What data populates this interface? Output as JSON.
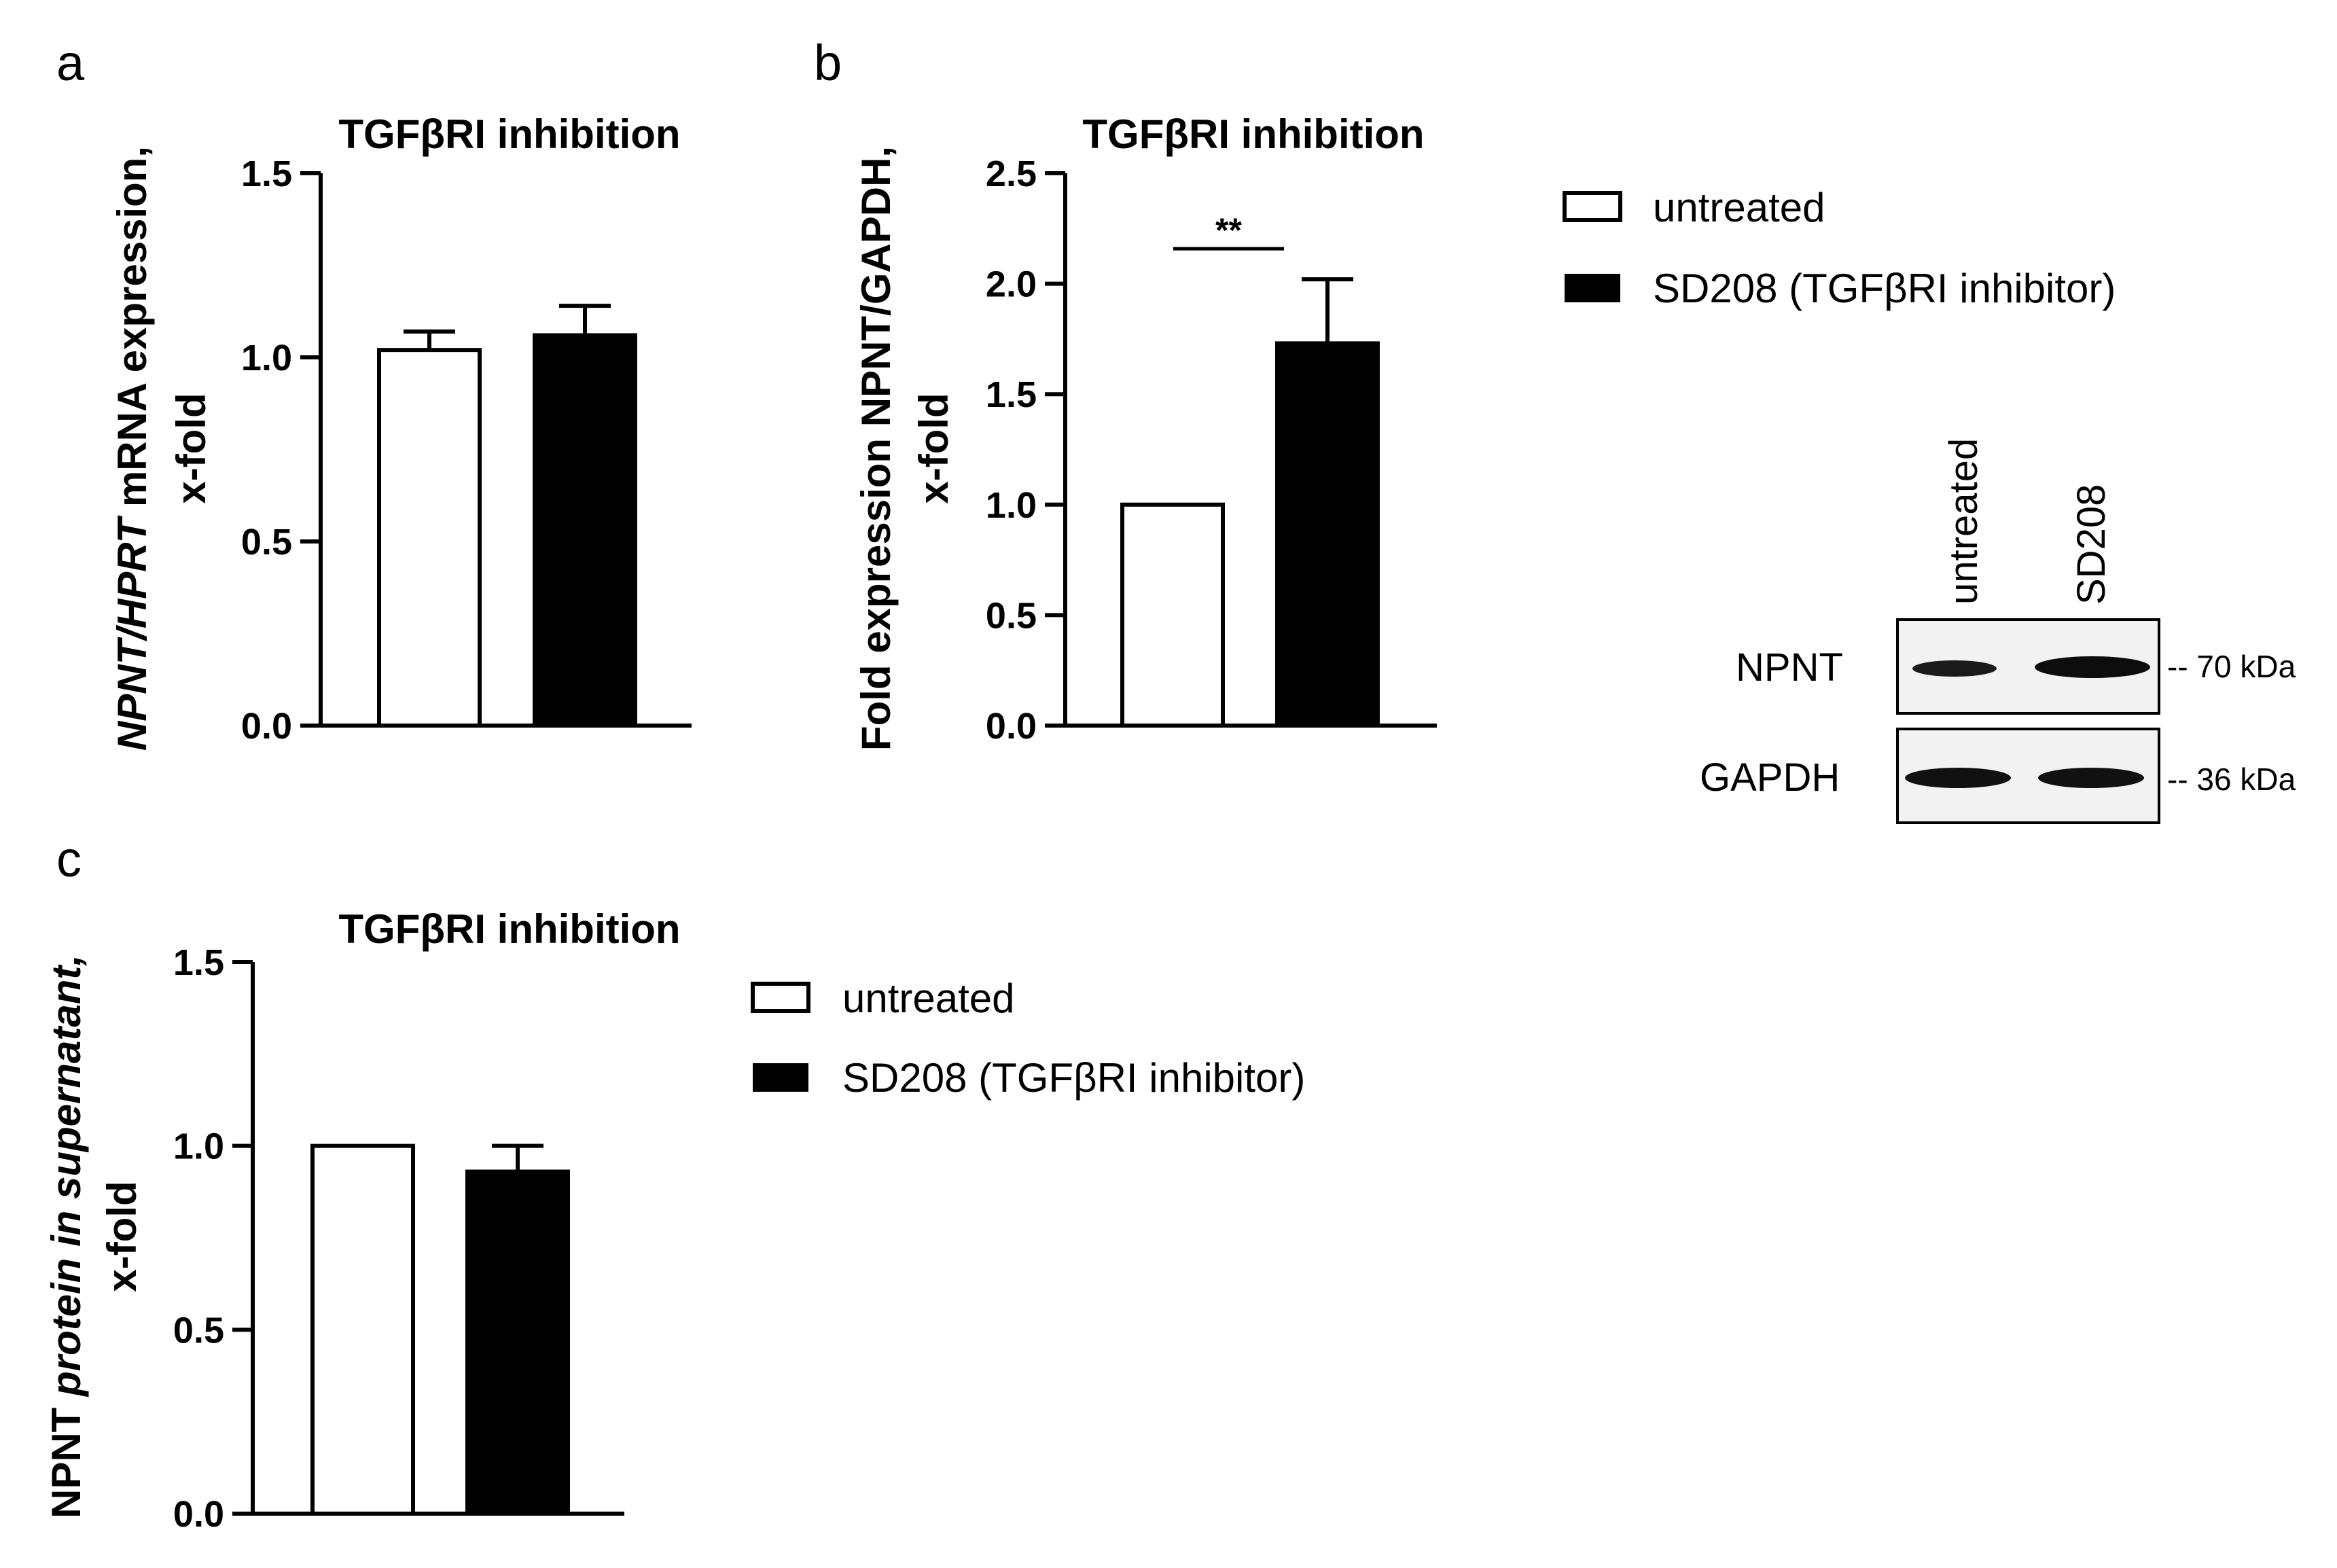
{
  "legend_top": {
    "items": [
      "untreated",
      "SD208 (TGFβRI inhibitor)"
    ]
  },
  "legend_bottom": {
    "items": [
      "untreated",
      "SD208 (TGFβRI inhibitor)"
    ]
  },
  "chart_data": [
    {
      "panel": "a",
      "type": "bar",
      "title": "TGFβRI inhibition",
      "ylabel_parts": [
        "NPNT/HPRT",
        " mRNA expression,"
      ],
      "ylabel_line2": "x-fold",
      "categories": [
        "untreated",
        "SD208 (TGFβRI inhibitor)"
      ],
      "values": [
        1.02,
        1.06
      ],
      "errors": [
        0.05,
        0.08
      ],
      "colors": [
        "#ffffff",
        "#000000"
      ],
      "ylim": [
        0,
        1.5
      ],
      "yticks": [
        "0.0",
        "0.5",
        "1.0",
        "1.5"
      ],
      "significance": ""
    },
    {
      "panel": "b",
      "type": "bar",
      "title": "TGFβRI inhibition",
      "ylabel_parts": [
        "Fold expression NPNT/GAPDH,"
      ],
      "ylabel_line2": "x-fold",
      "categories": [
        "untreated",
        "SD208 (TGFβRI inhibitor)"
      ],
      "values": [
        1.0,
        1.73
      ],
      "errors": [
        0,
        0.29
      ],
      "colors": [
        "#ffffff",
        "#000000"
      ],
      "ylim": [
        0,
        2.5
      ],
      "yticks": [
        "0.0",
        "0.5",
        "1.0",
        "1.5",
        "2.0",
        "2.5"
      ],
      "significance": "**"
    },
    {
      "panel": "c",
      "type": "bar",
      "title": "TGFβRI inhibition",
      "ylabel_parts": [
        "NPNT ",
        "protein in supernatant,"
      ],
      "ylabel_line2": "x-fold",
      "categories": [
        "untreated",
        "SD208 (TGFβRI inhibitor)"
      ],
      "values": [
        1.0,
        0.93
      ],
      "errors": [
        0,
        0.07
      ],
      "colors": [
        "#ffffff",
        "#000000"
      ],
      "ylim": [
        0,
        1.5
      ],
      "yticks": [
        "0.0",
        "0.5",
        "1.0",
        "1.5"
      ],
      "significance": ""
    }
  ],
  "blot": {
    "lanes": [
      "untreated",
      "SD208"
    ],
    "rows": [
      {
        "label": "NPNT",
        "marker": "-- 70 kDa",
        "band_strength": [
          0.55,
          0.95
        ]
      },
      {
        "label": "GAPDH",
        "marker": "-- 36 kDa",
        "band_strength": [
          0.9,
          0.9
        ]
      }
    ]
  }
}
